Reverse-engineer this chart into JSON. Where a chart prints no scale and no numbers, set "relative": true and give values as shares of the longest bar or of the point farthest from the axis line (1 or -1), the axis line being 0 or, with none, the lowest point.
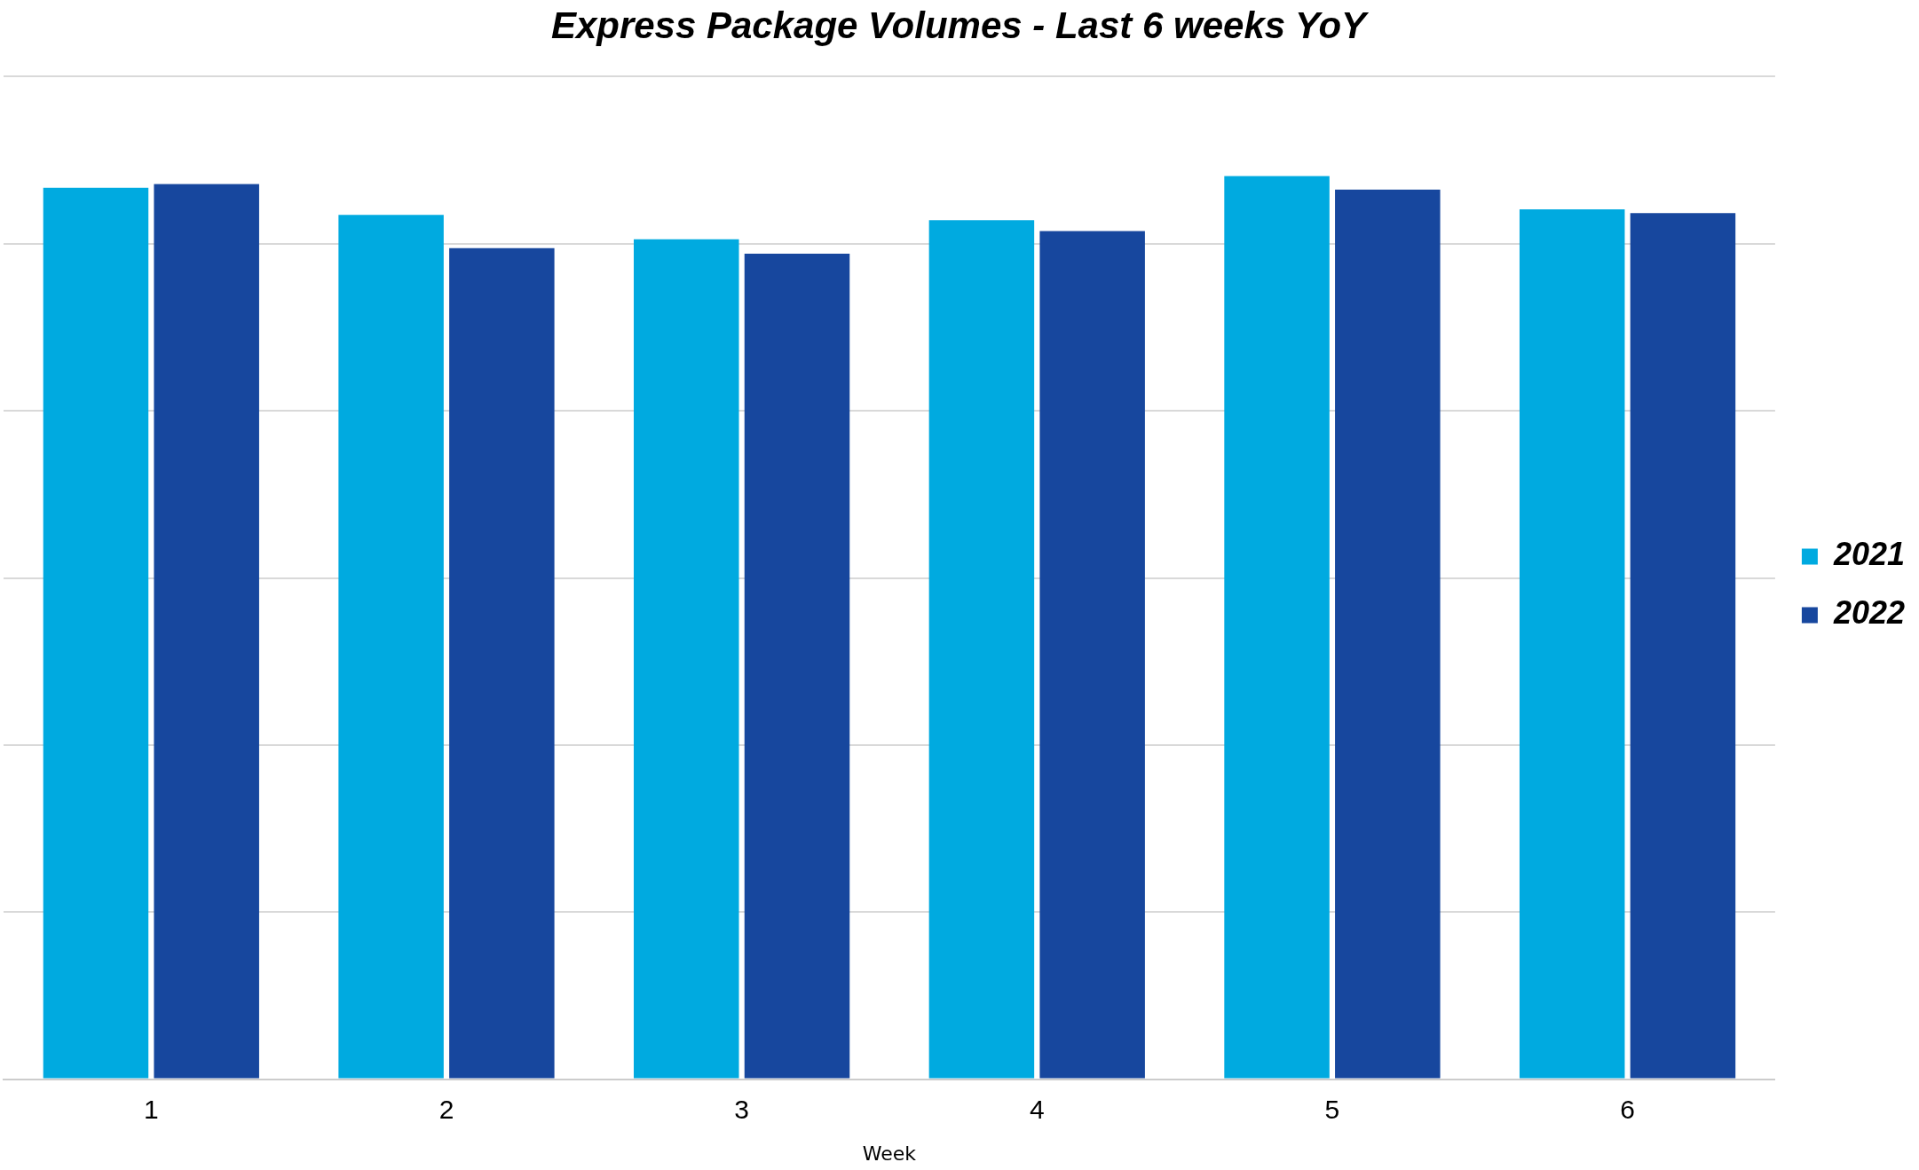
{
  "chart_data": {
    "type": "bar",
    "title": "Express Package Volumes - Last 6 weeks YoY",
    "xlabel": "Week",
    "categories": [
      "1",
      "2",
      "3",
      "4",
      "5",
      "6"
    ],
    "relative": true,
    "grid": "y",
    "legend": "right",
    "series": [
      {
        "name": "2021",
        "color": "#00aae0",
        "values": [
          0.987,
          0.957,
          0.93,
          0.951,
          1,
          0.963
        ]
      },
      {
        "name": "2022",
        "color": "#17479e",
        "values": [
          0.991,
          0.92,
          0.914,
          0.939,
          0.985,
          0.959
        ]
      }
    ]
  }
}
